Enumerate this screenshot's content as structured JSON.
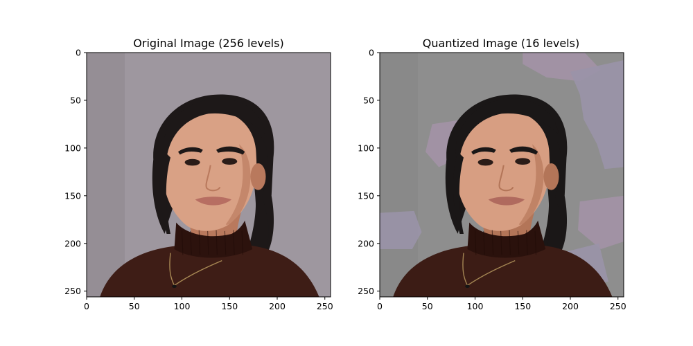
{
  "figure": {
    "background": "#ffffff"
  },
  "chart_data": [
    {
      "type": "image",
      "title": "Original Image (256 levels)",
      "image_kind": "portrait",
      "xlim": [
        0,
        256
      ],
      "ylim": [
        256,
        0
      ],
      "x_ticks": [
        0,
        50,
        100,
        150,
        200,
        250
      ],
      "y_ticks": [
        0,
        50,
        100,
        150,
        200,
        250
      ],
      "palette": {
        "background": "#9e979f",
        "background_dark": "#8f8890",
        "hair": "#1d1818",
        "skin": "#d9a185",
        "skin_shadow": "#b9795d",
        "sweater": "#3e1d16",
        "sweater_dark": "#2c120d",
        "lips": "#b76e62",
        "necklace": "#a98a55"
      }
    },
    {
      "type": "image",
      "title": "Quantized Image (16 levels)",
      "image_kind": "portrait",
      "xlim": [
        0,
        256
      ],
      "ylim": [
        256,
        0
      ],
      "x_ticks": [
        0,
        50,
        100,
        150,
        200,
        250
      ],
      "y_ticks": [
        0,
        50,
        100,
        150,
        200,
        250
      ],
      "palette": {
        "background": "#8e8e8e",
        "background_dark": "#868686",
        "patch_pink": "#a392a6",
        "patch_lavender": "#9a93a8",
        "hair": "#1a1717",
        "skin": "#d79e82",
        "skin_shadow": "#b37558",
        "sweater": "#3c1c15",
        "sweater_dark": "#2a110c",
        "lips": "#b06a5e",
        "necklace": "#a58754"
      }
    }
  ]
}
